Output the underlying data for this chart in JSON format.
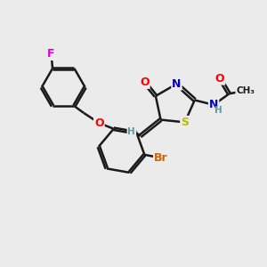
{
  "bg_color": "#ebebeb",
  "bond_color": "#1a1a1a",
  "atom_colors": {
    "O": "#ff0000",
    "N": "#0000bb",
    "S": "#bbbb00",
    "Br": "#cc6600",
    "F": "#dd00dd",
    "H": "#669999",
    "C": "#1a1a1a"
  },
  "bond_width": 1.8,
  "figsize": [
    3.0,
    3.0
  ],
  "dpi": 100
}
